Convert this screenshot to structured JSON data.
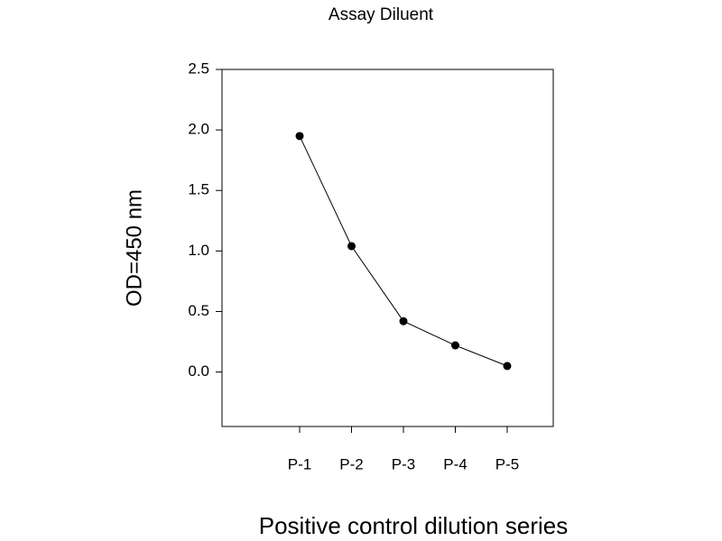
{
  "chart_data": {
    "type": "line",
    "title": "Assay Diluent",
    "x_label": "Positive control dilution series",
    "y_label": "OD=450 nm",
    "categories": [
      "P-1",
      "P-2",
      "P-3",
      "P-4",
      "P-5"
    ],
    "series": [
      {
        "name": "Assay Diluent",
        "color": "#000000",
        "values": [
          1.95,
          1.04,
          0.42,
          0.22,
          0.05
        ]
      }
    ],
    "ylim": [
      -0.45,
      2.5
    ],
    "yticks": [
      {
        "value": 0,
        "label": "0.0"
      },
      0.5,
      {
        "value": 1,
        "label": "1.0"
      },
      1.5,
      {
        "value": 2,
        "label": "2.0"
      },
      2.5
    ]
  }
}
